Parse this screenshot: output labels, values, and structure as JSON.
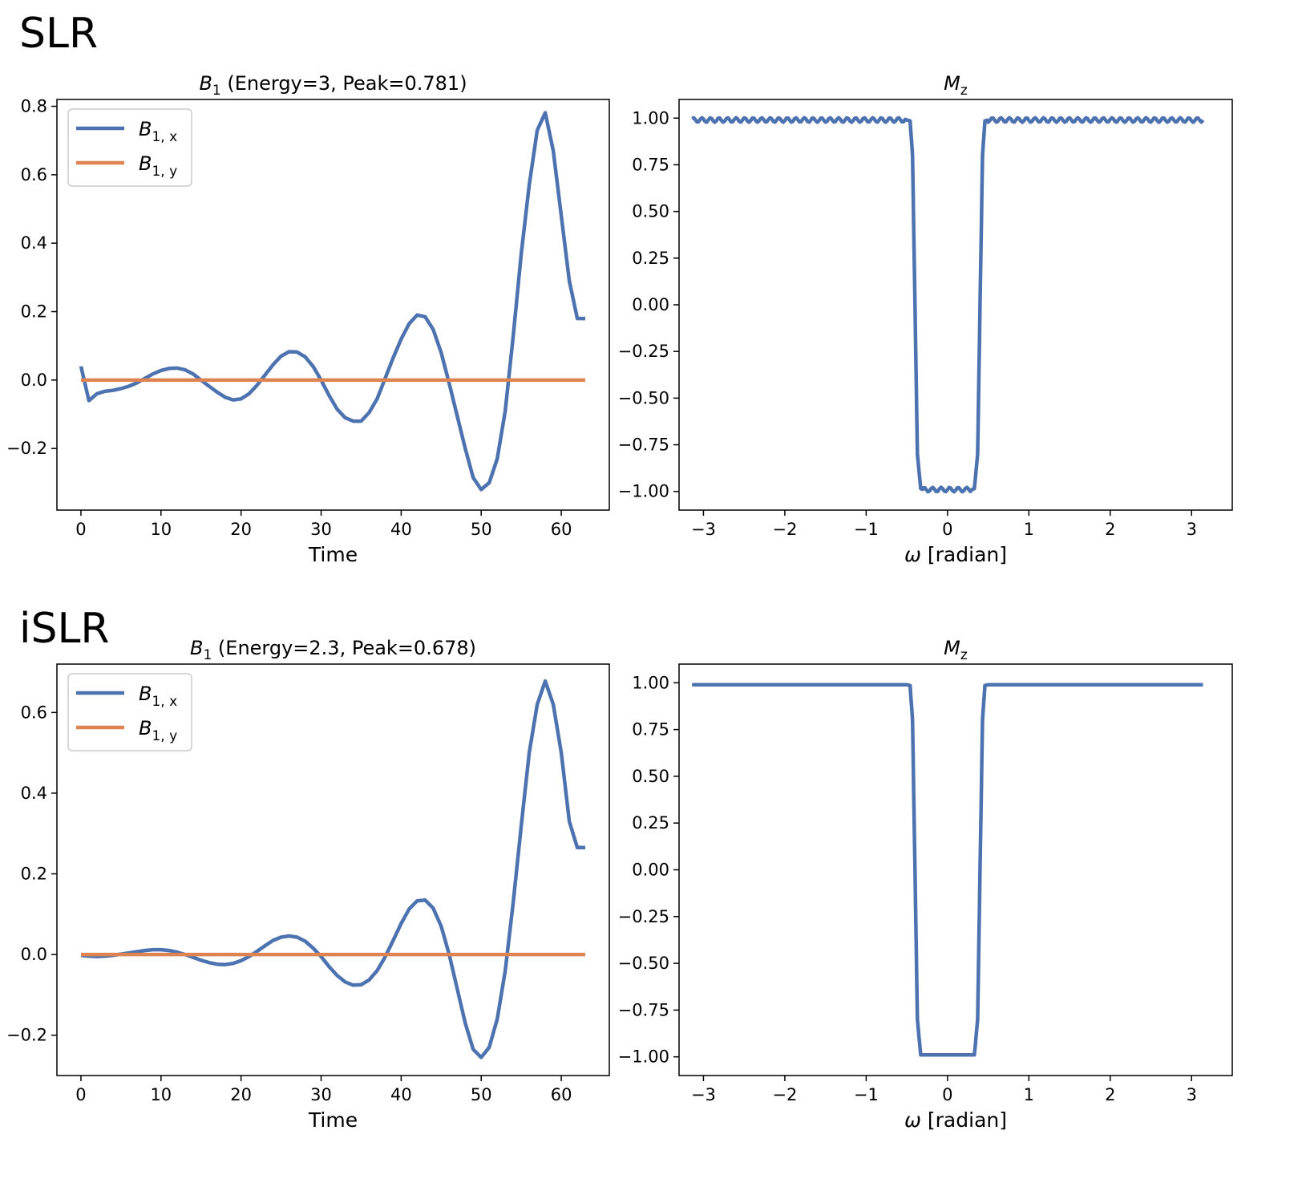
{
  "sections": [
    {
      "title": "SLR"
    },
    {
      "title": "iSLR"
    }
  ],
  "colors": {
    "bx": "#4c72b0",
    "by": "#dd8452",
    "axis": "#000000",
    "legend_border": "#cccccc"
  },
  "chart_data": [
    {
      "id": "slr-b1",
      "type": "line",
      "title_symbol": "B",
      "title_sub": "1",
      "title_rest": " (Energy=3, Peak=0.781)",
      "xlabel": "Time",
      "ylabel": "",
      "xlim": [
        -3,
        66
      ],
      "ylim": [
        -0.38,
        0.82
      ],
      "xticks": [
        0,
        10,
        20,
        30,
        40,
        50,
        60
      ],
      "xtick_labels": [
        "0",
        "10",
        "20",
        "30",
        "40",
        "50",
        "60"
      ],
      "yticks": [
        -0.2,
        0.0,
        0.2,
        0.4,
        0.6,
        0.8
      ],
      "ytick_labels": [
        "−0.2",
        "0.0",
        "0.2",
        "0.4",
        "0.6",
        "0.8"
      ],
      "legend": {
        "position": "upper-left",
        "entries": [
          {
            "symbol": "B",
            "sub": "1, x"
          },
          {
            "symbol": "B",
            "sub": "1, y"
          }
        ]
      },
      "series": [
        {
          "name": "B1,x",
          "color_key": "bx",
          "x": [
            0,
            1,
            2,
            3,
            4,
            5,
            6,
            7,
            8,
            9,
            10,
            11,
            12,
            13,
            14,
            15,
            16,
            17,
            18,
            19,
            20,
            21,
            22,
            23,
            24,
            25,
            26,
            27,
            28,
            29,
            30,
            31,
            32,
            33,
            34,
            35,
            36,
            37,
            38,
            39,
            40,
            41,
            42,
            43,
            44,
            45,
            46,
            47,
            48,
            49,
            50,
            51,
            52,
            53,
            54,
            55,
            56,
            57,
            58,
            59,
            60,
            61,
            62,
            63
          ],
          "values": [
            0.04,
            -0.06,
            -0.04,
            -0.033,
            -0.03,
            -0.025,
            -0.018,
            -0.008,
            0.005,
            0.018,
            0.028,
            0.034,
            0.035,
            0.03,
            0.018,
            0.0,
            -0.018,
            -0.035,
            -0.05,
            -0.058,
            -0.055,
            -0.04,
            -0.015,
            0.015,
            0.045,
            0.07,
            0.083,
            0.082,
            0.068,
            0.04,
            0.0,
            -0.045,
            -0.085,
            -0.11,
            -0.12,
            -0.12,
            -0.095,
            -0.055,
            0.005,
            0.065,
            0.12,
            0.165,
            0.19,
            0.185,
            0.148,
            0.08,
            -0.01,
            -0.105,
            -0.2,
            -0.285,
            -0.32,
            -0.3,
            -0.23,
            -0.09,
            0.13,
            0.37,
            0.57,
            0.73,
            0.781,
            0.67,
            0.48,
            0.29,
            0.18,
            0.18
          ]
        },
        {
          "name": "B1,y",
          "color_key": "by",
          "x": [
            0,
            63
          ],
          "values": [
            0,
            0
          ]
        }
      ]
    },
    {
      "id": "slr-mz",
      "type": "line",
      "title_symbol": "M",
      "title_sub": "z",
      "title_rest": "",
      "xlabel_symbol": "ω",
      "xlabel": " [radian]",
      "xlim": [
        -3.3,
        3.5
      ],
      "ylim": [
        -1.1,
        1.1
      ],
      "xticks": [
        -3,
        -2,
        -1,
        0,
        1,
        2,
        3
      ],
      "xtick_labels": [
        "−3",
        "−2",
        "−1",
        "0",
        "1",
        "2",
        "3"
      ],
      "yticks": [
        -1.0,
        -0.75,
        -0.5,
        -0.25,
        0.0,
        0.25,
        0.5,
        0.75,
        1.0
      ],
      "ytick_labels": [
        "−1.00",
        "−0.75",
        "−0.50",
        "−0.25",
        "0.00",
        "0.25",
        "0.50",
        "0.75",
        "1.00"
      ],
      "series": [
        {
          "name": "Mz",
          "color_key": "bx",
          "ripple_amplitude": 0.012,
          "x": [
            -3.14,
            -0.5,
            -0.46,
            -0.43,
            -0.4,
            -0.37,
            -0.33,
            -0.3,
            0.3,
            0.33,
            0.37,
            0.4,
            0.43,
            0.46,
            0.5,
            3.14
          ],
          "values": [
            0.99,
            0.99,
            0.985,
            0.8,
            0.0,
            -0.8,
            -0.985,
            -0.99,
            -0.99,
            -0.985,
            -0.8,
            0.0,
            0.8,
            0.985,
            0.99,
            0.99
          ]
        }
      ]
    },
    {
      "id": "islr-b1",
      "type": "line",
      "title_symbol": "B",
      "title_sub": "1",
      "title_rest": " (Energy=2.3, Peak=0.678)",
      "xlabel": "Time",
      "ylabel": "",
      "xlim": [
        -3,
        66
      ],
      "ylim": [
        -0.3,
        0.72
      ],
      "xticks": [
        0,
        10,
        20,
        30,
        40,
        50,
        60
      ],
      "xtick_labels": [
        "0",
        "10",
        "20",
        "30",
        "40",
        "50",
        "60"
      ],
      "yticks": [
        -0.2,
        0.0,
        0.2,
        0.4,
        0.6
      ],
      "ytick_labels": [
        "−0.2",
        "0.0",
        "0.2",
        "0.4",
        "0.6"
      ],
      "legend": {
        "position": "upper-left",
        "entries": [
          {
            "symbol": "B",
            "sub": "1, x"
          },
          {
            "symbol": "B",
            "sub": "1, y"
          }
        ]
      },
      "series": [
        {
          "name": "B1,x",
          "color_key": "bx",
          "x": [
            0,
            1,
            2,
            3,
            4,
            5,
            6,
            7,
            8,
            9,
            10,
            11,
            12,
            13,
            14,
            15,
            16,
            17,
            18,
            19,
            20,
            21,
            22,
            23,
            24,
            25,
            26,
            27,
            28,
            29,
            30,
            31,
            32,
            33,
            34,
            35,
            36,
            37,
            38,
            39,
            40,
            41,
            42,
            43,
            44,
            45,
            46,
            47,
            48,
            49,
            50,
            51,
            52,
            53,
            54,
            55,
            56,
            57,
            58,
            59,
            60,
            61,
            62,
            63
          ],
          "values": [
            -0.002,
            -0.004,
            -0.005,
            -0.004,
            -0.002,
            0.001,
            0.004,
            0.007,
            0.01,
            0.012,
            0.012,
            0.01,
            0.006,
            0.0,
            -0.007,
            -0.014,
            -0.02,
            -0.024,
            -0.025,
            -0.022,
            -0.015,
            -0.005,
            0.008,
            0.022,
            0.035,
            0.043,
            0.046,
            0.043,
            0.033,
            0.016,
            -0.005,
            -0.03,
            -0.052,
            -0.068,
            -0.076,
            -0.075,
            -0.063,
            -0.04,
            -0.006,
            0.035,
            0.077,
            0.113,
            0.133,
            0.135,
            0.115,
            0.07,
            0.0,
            -0.085,
            -0.17,
            -0.235,
            -0.255,
            -0.23,
            -0.16,
            -0.04,
            0.13,
            0.32,
            0.5,
            0.62,
            0.678,
            0.62,
            0.5,
            0.33,
            0.265,
            0.265
          ]
        },
        {
          "name": "B1,y",
          "color_key": "by",
          "x": [
            0,
            63
          ],
          "values": [
            0,
            0
          ]
        }
      ]
    },
    {
      "id": "islr-mz",
      "type": "line",
      "title_symbol": "M",
      "title_sub": "z",
      "title_rest": "",
      "xlabel_symbol": "ω",
      "xlabel": " [radian]",
      "xlim": [
        -3.3,
        3.5
      ],
      "ylim": [
        -1.1,
        1.1
      ],
      "xticks": [
        -3,
        -2,
        -1,
        0,
        1,
        2,
        3
      ],
      "xtick_labels": [
        "−3",
        "−2",
        "−1",
        "0",
        "1",
        "2",
        "3"
      ],
      "yticks": [
        -1.0,
        -0.75,
        -0.5,
        -0.25,
        0.0,
        0.25,
        0.5,
        0.75,
        1.0
      ],
      "ytick_labels": [
        "−1.00",
        "−0.75",
        "−0.50",
        "−0.25",
        "0.00",
        "0.25",
        "0.50",
        "0.75",
        "1.00"
      ],
      "series": [
        {
          "name": "Mz",
          "color_key": "bx",
          "ripple_amplitude": 0.0,
          "x": [
            -3.14,
            -0.5,
            -0.46,
            -0.43,
            -0.4,
            -0.37,
            -0.33,
            -0.3,
            0.3,
            0.33,
            0.37,
            0.4,
            0.43,
            0.46,
            0.5,
            3.14
          ],
          "values": [
            0.99,
            0.99,
            0.985,
            0.8,
            0.0,
            -0.8,
            -0.99,
            -0.99,
            -0.99,
            -0.99,
            -0.8,
            0.0,
            0.8,
            0.985,
            0.99,
            0.99
          ]
        }
      ]
    }
  ]
}
